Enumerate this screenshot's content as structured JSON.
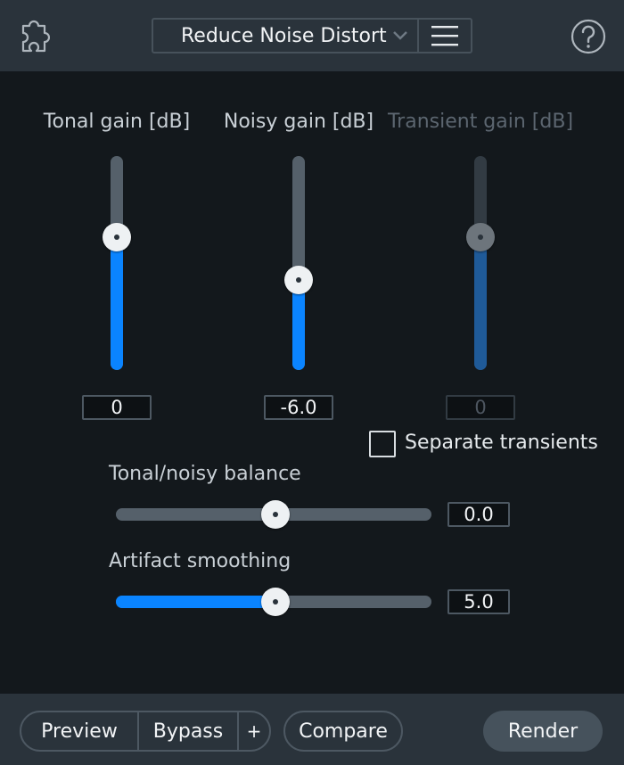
{
  "header": {
    "plugin_icon": "puzzle-piece-icon",
    "preset_name": "Reduce Noise Distort",
    "preset_dropdown_icon": "chevron-down-icon",
    "menu_icon": "hamburger-menu-icon",
    "help_icon": "question-mark-icon"
  },
  "gain_sliders": [
    {
      "label": "Tonal gain [dB]",
      "value": "0",
      "level": 0.62,
      "enabled": true
    },
    {
      "label": "Noisy gain [dB]",
      "value": "-6.0",
      "level": 0.42,
      "enabled": true
    },
    {
      "label": "Transient gain [dB]",
      "value": "0",
      "level": 0.62,
      "enabled": false
    }
  ],
  "separate_transients": {
    "label": "Separate transients",
    "checked": false
  },
  "balance": {
    "label": "Tonal/noisy balance",
    "value": "0.0",
    "level": 0.5
  },
  "smoothing": {
    "label": "Artifact smoothing",
    "value": "5.0",
    "level": 0.5
  },
  "footer": {
    "preview_label": "Preview",
    "bypass_label": "Bypass",
    "plus_label": "+",
    "compare_label": "Compare",
    "render_label": "Render"
  },
  "colors": {
    "accent": "#0a84ff",
    "accent_disabled": "#1f5a98",
    "panel": "#13181c",
    "bar": "#2a333b"
  }
}
